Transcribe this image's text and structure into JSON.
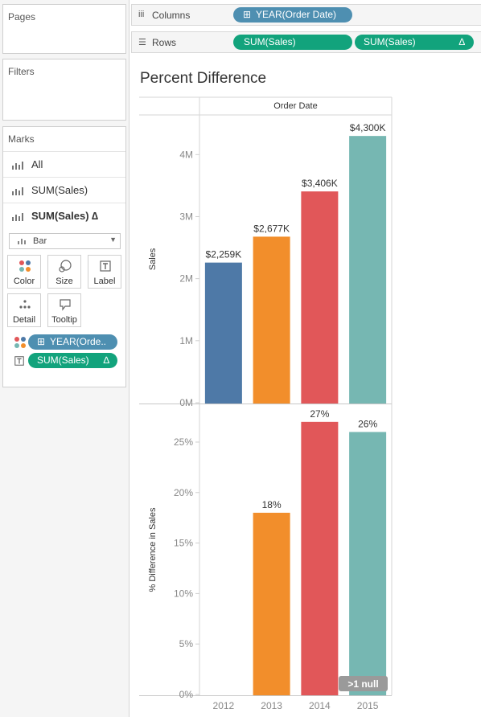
{
  "cards": {
    "pages_label": "Pages",
    "filters_label": "Filters",
    "marks_label": "Marks"
  },
  "marks": {
    "rows": [
      {
        "label": "All"
      },
      {
        "label": "SUM(Sales)"
      },
      {
        "label": "SUM(Sales) ∆"
      }
    ],
    "type": "Bar",
    "properties": [
      {
        "label": "Color",
        "icon": "color-dots-icon"
      },
      {
        "label": "Size",
        "icon": "size-icon"
      },
      {
        "label": "Label",
        "icon": "label-icon"
      },
      {
        "label": "Detail",
        "icon": "detail-icon"
      },
      {
        "label": "Tooltip",
        "icon": "tooltip-icon"
      }
    ],
    "pills": [
      {
        "label": "YEAR(Orde..",
        "icon": "color-dots-icon",
        "kind": "discrete"
      },
      {
        "label": "SUM(Sales)",
        "delta": "∆",
        "icon": "label-icon",
        "kind": "measure"
      }
    ]
  },
  "shelves": {
    "columns_label": "Columns",
    "columns_icon": "iii",
    "columns_pill": "YEAR(Order Date)",
    "rows_label": "Rows",
    "rows_icon": "☰",
    "rows_pills": [
      "SUM(Sales)",
      "SUM(Sales)"
    ],
    "rows_pill_delta": "∆"
  },
  "sheet_title": "Percent Difference",
  "null_indicator": ">1 null",
  "colors": {
    "2012": "#4e79a7",
    "2013": "#f28e2b",
    "2014": "#e15759",
    "2015": "#76b7b2",
    "pill_blue": "#4e8fb1",
    "pill_green": "#12a37c"
  },
  "chart_data": [
    {
      "type": "bar",
      "title": "Percent Difference",
      "header": "Order Date",
      "categories": [
        "2012",
        "2013",
        "2014",
        "2015"
      ],
      "values": [
        2259,
        2677,
        3406,
        4300
      ],
      "value_units": "thousands",
      "data_labels": [
        "$2,259K",
        "$2,677K",
        "$3,406K",
        "$4,300K"
      ],
      "ylabel": "Sales",
      "ylim": [
        0,
        4600
      ],
      "yticks": [
        0,
        1000,
        2000,
        3000,
        4000
      ],
      "ytick_labels": [
        "0M",
        "1M",
        "2M",
        "3M",
        "4M"
      ]
    },
    {
      "type": "bar",
      "categories": [
        "2012",
        "2013",
        "2014",
        "2015"
      ],
      "values": [
        null,
        18,
        27,
        26
      ],
      "data_labels": [
        "",
        "18%",
        "27%",
        "26%"
      ],
      "ylabel": "% Difference in Sales",
      "ylim": [
        0,
        28.5
      ],
      "yticks": [
        0,
        5,
        10,
        15,
        20,
        25
      ],
      "ytick_labels": [
        "0%",
        "5%",
        "10%",
        "15%",
        "20%",
        "25%"
      ],
      "xlabels": [
        "2012",
        "2013",
        "2014",
        "2015"
      ]
    }
  ]
}
